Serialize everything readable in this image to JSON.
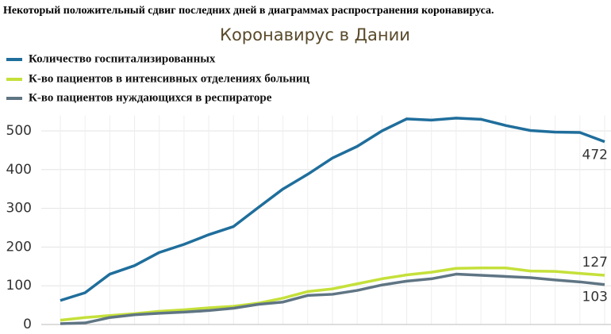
{
  "chart_data": {
    "type": "line",
    "headline": "Некоторый положительный сдвиг последних дней в диаграммах распространения коронавируса.",
    "title": "Коронавирус в Дании",
    "categories": [
      null,
      null,
      null,
      null,
      null,
      null,
      null,
      null,
      null,
      null,
      null,
      null,
      null,
      null,
      null,
      null,
      null,
      null,
      null,
      null,
      null,
      null,
      null
    ],
    "series": [
      {
        "name": "Количество госпитализированных",
        "color": "#1f6e9c",
        "values": [
          62,
          82,
          130,
          152,
          186,
          207,
          232,
          253,
          302,
          350,
          388,
          430,
          460,
          500,
          531,
          528,
          533,
          530,
          514,
          501,
          497,
          496,
          472
        ]
      },
      {
        "name": "К-во пациентов в интенсивных отделениях больниц",
        "color": "#c5e03a",
        "values": [
          11,
          18,
          23,
          28,
          34,
          38,
          43,
          47,
          55,
          68,
          85,
          92,
          105,
          118,
          128,
          135,
          145,
          146,
          146,
          138,
          137,
          132,
          127
        ]
      },
      {
        "name": "К-во пациентов нуждающихся в респираторе",
        "color": "#5f7584",
        "values": [
          2,
          4,
          18,
          25,
          29,
          32,
          36,
          42,
          52,
          58,
          75,
          78,
          88,
          102,
          112,
          118,
          130,
          127,
          124,
          121,
          115,
          110,
          103
        ]
      }
    ],
    "ylim": [
      0,
      540
    ],
    "yticks": [
      0,
      100,
      200,
      300,
      400,
      500
    ],
    "grid": true
  }
}
